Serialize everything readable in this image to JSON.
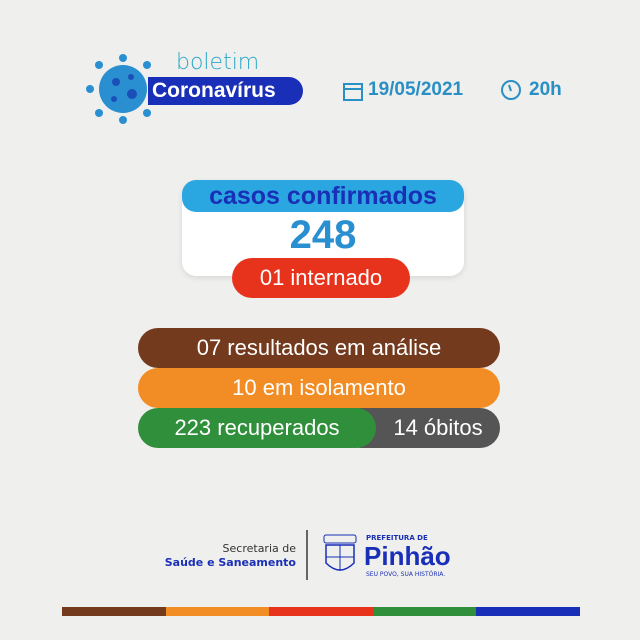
{
  "header": {
    "boletim": "boletim",
    "title": "Coronavírus",
    "date": "19/05/2021",
    "time": "20h"
  },
  "cases": {
    "label": "casos confirmados",
    "count": "248",
    "hospitalized": "01 internado"
  },
  "stats": {
    "analysis": "07 resultados em análise",
    "isolation": "10 em isolamento",
    "recovered": "223 recuperados",
    "deaths": "14 óbitos"
  },
  "footer": {
    "secretaria_line1": "Secretaria de",
    "secretaria_line2": "Saúde e Saneamento",
    "crest_text": "PINHÃO",
    "prefeitura": "PREFEITURA DE",
    "city": "Pinhão",
    "slogan": "SEU POVO, SUA HISTÓRIA."
  },
  "colors": {
    "blue": "#1a2fb7",
    "light_blue": "#2aa7e0",
    "red": "#e8331c",
    "brown": "#743a1d",
    "orange": "#f28d25",
    "green": "#2f8f3a",
    "gray": "#555555"
  },
  "stripe_colors": [
    "#743a1d",
    "#f28d25",
    "#e8331c",
    "#2f8f3a",
    "#1a2fb7"
  ]
}
